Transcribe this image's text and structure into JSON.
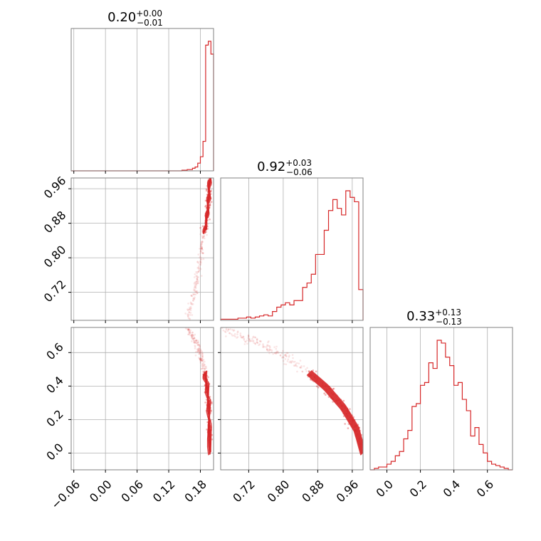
{
  "chart_data": {
    "type": "corner",
    "color": "#d62728",
    "parameters": [
      {
        "index": 0,
        "median": "0.20",
        "plus": "+0.00",
        "minus": "−0.01",
        "range": [
          -0.065,
          0.205
        ],
        "ticks": [
          -0.06,
          0.0,
          0.06,
          0.12,
          0.18
        ],
        "tick_labels": [
          "−0.06",
          "0.00",
          "0.06",
          "0.12",
          "0.18"
        ],
        "hist_edges": [
          -0.065,
          0.145,
          0.155,
          0.165,
          0.17,
          0.175,
          0.18,
          0.185,
          0.19,
          0.195,
          0.2,
          0.205
        ],
        "hist_counts": [
          0,
          1,
          2,
          4,
          6,
          12,
          22,
          46,
          196,
          202,
          182
        ]
      },
      {
        "index": 1,
        "median": "0.92",
        "plus": "+0.03",
        "minus": "−0.06",
        "range": [
          0.655,
          0.985
        ],
        "ticks": [
          0.72,
          0.8,
          0.88,
          0.96
        ],
        "tick_labels": [
          "0.72",
          "0.80",
          "0.88",
          "0.96"
        ],
        "hist_edges": [
          0.655,
          0.665,
          0.675,
          0.685,
          0.695,
          0.705,
          0.715,
          0.725,
          0.735,
          0.745,
          0.755,
          0.765,
          0.775,
          0.785,
          0.795,
          0.805,
          0.815,
          0.825,
          0.835,
          0.845,
          0.855,
          0.865,
          0.875,
          0.885,
          0.895,
          0.905,
          0.915,
          0.925,
          0.935,
          0.945,
          0.955,
          0.965,
          0.975,
          0.985
        ],
        "hist_counts": [
          1,
          1,
          1,
          1,
          2,
          2,
          3,
          2,
          3,
          4,
          5,
          4,
          8,
          12,
          14,
          16,
          14,
          18,
          18,
          30,
          34,
          42,
          60,
          60,
          82,
          100,
          110,
          102,
          96,
          118,
          112,
          108,
          28
        ]
      },
      {
        "index": 2,
        "median": "0.33",
        "plus": "+0.13",
        "minus": "−0.13",
        "range": [
          -0.1,
          0.75
        ],
        "ticks": [
          0.0,
          0.2,
          0.4,
          0.6
        ],
        "tick_labels": [
          "0.0",
          "0.2",
          "0.4",
          "0.6"
        ],
        "hist_edges": [
          -0.1,
          -0.075,
          -0.05,
          -0.025,
          0.0,
          0.025,
          0.05,
          0.075,
          0.1,
          0.125,
          0.15,
          0.175,
          0.2,
          0.225,
          0.25,
          0.275,
          0.3,
          0.325,
          0.35,
          0.375,
          0.4,
          0.425,
          0.45,
          0.475,
          0.5,
          0.525,
          0.55,
          0.575,
          0.6,
          0.625,
          0.65,
          0.675,
          0.7,
          0.725,
          0.75
        ],
        "hist_counts": [
          0,
          1,
          2,
          2,
          4,
          6,
          10,
          13,
          22,
          28,
          45,
          47,
          60,
          62,
          76,
          72,
          92,
          90,
          80,
          74,
          60,
          62,
          50,
          42,
          24,
          30,
          18,
          12,
          6,
          4,
          3,
          2,
          1,
          0
        ]
      }
    ],
    "scatter_trend": {
      "p1": [
        0.66,
        0.7,
        0.74,
        0.78,
        0.82,
        0.86,
        0.9,
        0.94,
        0.97,
        0.985
      ],
      "p0": [
        0.155,
        0.165,
        0.172,
        0.178,
        0.183,
        0.188,
        0.193,
        0.196,
        0.197,
        0.198
      ],
      "p2": [
        0.74,
        0.7,
        0.66,
        0.61,
        0.55,
        0.48,
        0.39,
        0.27,
        0.14,
        0.0
      ]
    },
    "contour_spread": {
      "p0": 0.004,
      "p1": 0.01,
      "p2": 0.025
    }
  }
}
